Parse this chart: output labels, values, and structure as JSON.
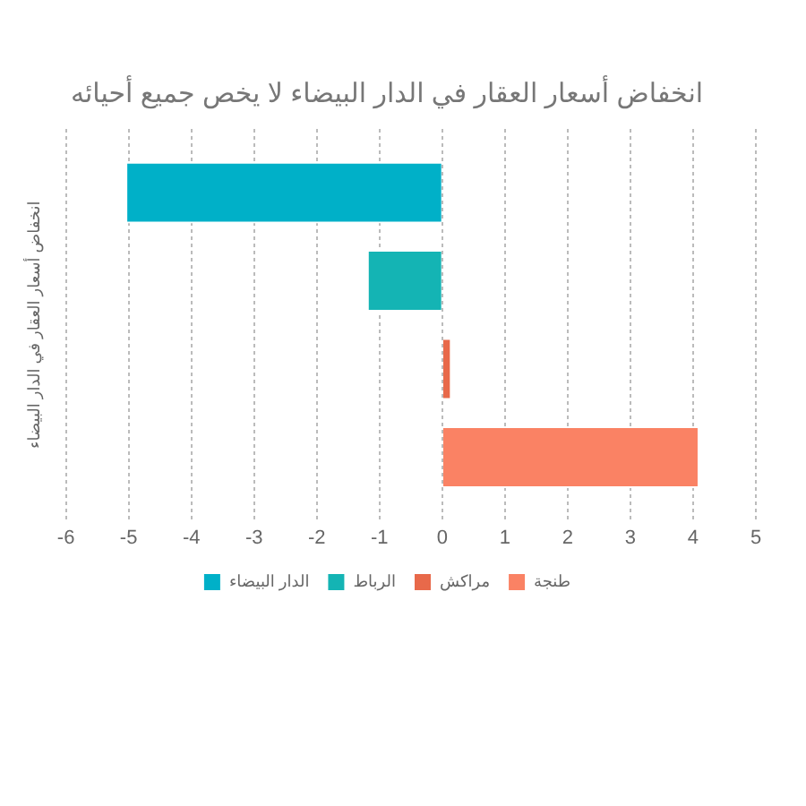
{
  "chart_data": {
    "type": "bar",
    "orientation": "horizontal",
    "title": "انخفاض أسعار العقار في الدار البيضاء لا يخص جميع أحيائه",
    "ylabel": "انخفاض أسعار العقار في الدار البيضاء",
    "categories": [
      null
    ],
    "series": [
      {
        "name": "الدار البيضاء",
        "color": "#00b0c8",
        "values": [
          -5.05
        ]
      },
      {
        "name": "الرباط",
        "color": "#14b4b4",
        "values": [
          -1.2
        ]
      },
      {
        "name": "مراكش",
        "color": "#e8694a",
        "values": [
          0.15
        ]
      },
      {
        "name": "طنجة",
        "color": "#fa8264",
        "values": [
          4.1
        ]
      }
    ],
    "xlim": [
      -6,
      5
    ],
    "xticks": [
      -6,
      -5,
      -4,
      -3,
      -2,
      -1,
      0,
      1,
      2,
      3,
      4,
      5
    ],
    "grid": "x",
    "legend": "bottom"
  }
}
